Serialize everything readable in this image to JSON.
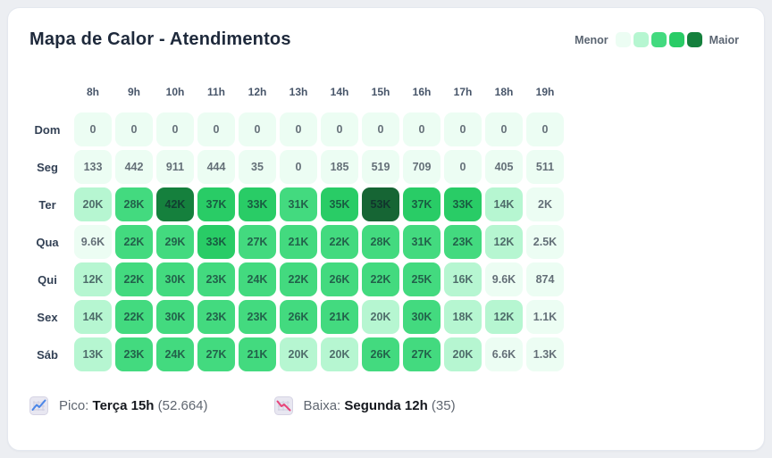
{
  "card": {
    "title": "Mapa de Calor - Atendimentos"
  },
  "legend": {
    "min_label": "Menor",
    "max_label": "Maior",
    "colors": [
      "#ecfdf3",
      "#b6f6d1",
      "#43da7f",
      "#29cc66",
      "#15803d"
    ]
  },
  "heatmap": {
    "cell_text_color": "rgba(15,23,42,0.62)",
    "levels": [
      {
        "bg": "#ecfdf3"
      },
      {
        "bg": "#b6f6d1"
      },
      {
        "bg": "#43da7f"
      },
      {
        "bg": "#29cc66"
      },
      {
        "bg": "#15803d"
      },
      {
        "bg": "#166534"
      }
    ],
    "hours": [
      "8h",
      "9h",
      "10h",
      "11h",
      "12h",
      "13h",
      "14h",
      "15h",
      "16h",
      "17h",
      "18h",
      "19h"
    ],
    "rows": [
      {
        "day": "Dom",
        "cells": [
          {
            "v": "0",
            "l": 0
          },
          {
            "v": "0",
            "l": 0
          },
          {
            "v": "0",
            "l": 0
          },
          {
            "v": "0",
            "l": 0
          },
          {
            "v": "0",
            "l": 0
          },
          {
            "v": "0",
            "l": 0
          },
          {
            "v": "0",
            "l": 0
          },
          {
            "v": "0",
            "l": 0
          },
          {
            "v": "0",
            "l": 0
          },
          {
            "v": "0",
            "l": 0
          },
          {
            "v": "0",
            "l": 0
          },
          {
            "v": "0",
            "l": 0
          }
        ]
      },
      {
        "day": "Seg",
        "cells": [
          {
            "v": "133",
            "l": 0
          },
          {
            "v": "442",
            "l": 0
          },
          {
            "v": "911",
            "l": 0
          },
          {
            "v": "444",
            "l": 0
          },
          {
            "v": "35",
            "l": 0
          },
          {
            "v": "0",
            "l": 0
          },
          {
            "v": "185",
            "l": 0
          },
          {
            "v": "519",
            "l": 0
          },
          {
            "v": "709",
            "l": 0
          },
          {
            "v": "0",
            "l": 0
          },
          {
            "v": "405",
            "l": 0
          },
          {
            "v": "511",
            "l": 0
          }
        ]
      },
      {
        "day": "Ter",
        "cells": [
          {
            "v": "20K",
            "l": 1
          },
          {
            "v": "28K",
            "l": 2
          },
          {
            "v": "42K",
            "l": 4
          },
          {
            "v": "37K",
            "l": 3
          },
          {
            "v": "33K",
            "l": 3
          },
          {
            "v": "31K",
            "l": 2
          },
          {
            "v": "35K",
            "l": 3
          },
          {
            "v": "53K",
            "l": 5
          },
          {
            "v": "37K",
            "l": 3
          },
          {
            "v": "33K",
            "l": 3
          },
          {
            "v": "14K",
            "l": 1
          },
          {
            "v": "2K",
            "l": 0
          }
        ]
      },
      {
        "day": "Qua",
        "cells": [
          {
            "v": "9.6K",
            "l": 0
          },
          {
            "v": "22K",
            "l": 2
          },
          {
            "v": "29K",
            "l": 2
          },
          {
            "v": "33K",
            "l": 3
          },
          {
            "v": "27K",
            "l": 2
          },
          {
            "v": "21K",
            "l": 2
          },
          {
            "v": "22K",
            "l": 2
          },
          {
            "v": "28K",
            "l": 2
          },
          {
            "v": "31K",
            "l": 2
          },
          {
            "v": "23K",
            "l": 2
          },
          {
            "v": "12K",
            "l": 1
          },
          {
            "v": "2.5K",
            "l": 0
          }
        ]
      },
      {
        "day": "Qui",
        "cells": [
          {
            "v": "12K",
            "l": 1
          },
          {
            "v": "22K",
            "l": 2
          },
          {
            "v": "30K",
            "l": 2
          },
          {
            "v": "23K",
            "l": 2
          },
          {
            "v": "24K",
            "l": 2
          },
          {
            "v": "22K",
            "l": 2
          },
          {
            "v": "26K",
            "l": 2
          },
          {
            "v": "22K",
            "l": 2
          },
          {
            "v": "25K",
            "l": 2
          },
          {
            "v": "16K",
            "l": 1
          },
          {
            "v": "9.6K",
            "l": 0
          },
          {
            "v": "874",
            "l": 0
          }
        ]
      },
      {
        "day": "Sex",
        "cells": [
          {
            "v": "14K",
            "l": 1
          },
          {
            "v": "22K",
            "l": 2
          },
          {
            "v": "30K",
            "l": 2
          },
          {
            "v": "23K",
            "l": 2
          },
          {
            "v": "23K",
            "l": 2
          },
          {
            "v": "26K",
            "l": 2
          },
          {
            "v": "21K",
            "l": 2
          },
          {
            "v": "20K",
            "l": 1
          },
          {
            "v": "30K",
            "l": 2
          },
          {
            "v": "18K",
            "l": 1
          },
          {
            "v": "12K",
            "l": 1
          },
          {
            "v": "1.1K",
            "l": 0
          }
        ]
      },
      {
        "day": "Sáb",
        "cells": [
          {
            "v": "13K",
            "l": 1
          },
          {
            "v": "23K",
            "l": 2
          },
          {
            "v": "24K",
            "l": 2
          },
          {
            "v": "27K",
            "l": 2
          },
          {
            "v": "21K",
            "l": 2
          },
          {
            "v": "20K",
            "l": 1
          },
          {
            "v": "20K",
            "l": 1
          },
          {
            "v": "26K",
            "l": 2
          },
          {
            "v": "27K",
            "l": 2
          },
          {
            "v": "20K",
            "l": 1
          },
          {
            "v": "6.6K",
            "l": 0
          },
          {
            "v": "1.3K",
            "l": 0
          }
        ]
      }
    ]
  },
  "footer": {
    "peak": {
      "label": "Pico:",
      "value": "Terça 15h",
      "detail": "(52.664)"
    },
    "low": {
      "label": "Baixa:",
      "value": "Segunda 12h",
      "detail": "(35)"
    }
  },
  "chart_data": {
    "type": "heatmap",
    "title": "Mapa de Calor - Atendimentos",
    "x": [
      "8h",
      "9h",
      "10h",
      "11h",
      "12h",
      "13h",
      "14h",
      "15h",
      "16h",
      "17h",
      "18h",
      "19h"
    ],
    "y": [
      "Dom",
      "Seg",
      "Ter",
      "Qua",
      "Qui",
      "Sex",
      "Sáb"
    ],
    "values": [
      [
        0,
        0,
        0,
        0,
        0,
        0,
        0,
        0,
        0,
        0,
        0,
        0
      ],
      [
        133,
        442,
        911,
        444,
        35,
        0,
        185,
        519,
        709,
        0,
        405,
        511
      ],
      [
        20000,
        28000,
        42000,
        37000,
        33000,
        31000,
        35000,
        52664,
        37000,
        33000,
        14000,
        2000
      ],
      [
        9600,
        22000,
        29000,
        33000,
        27000,
        21000,
        22000,
        28000,
        31000,
        23000,
        12000,
        2500
      ],
      [
        12000,
        22000,
        30000,
        23000,
        24000,
        22000,
        26000,
        22000,
        25000,
        16000,
        9600,
        874
      ],
      [
        14000,
        22000,
        30000,
        23000,
        23000,
        26000,
        21000,
        20000,
        30000,
        18000,
        12000,
        1100
      ],
      [
        13000,
        23000,
        24000,
        27000,
        21000,
        20000,
        20000,
        26000,
        27000,
        20000,
        6600,
        1300
      ]
    ],
    "value_labels": [
      [
        "0",
        "0",
        "0",
        "0",
        "0",
        "0",
        "0",
        "0",
        "0",
        "0",
        "0",
        "0"
      ],
      [
        "133",
        "442",
        "911",
        "444",
        "35",
        "0",
        "185",
        "519",
        "709",
        "0",
        "405",
        "511"
      ],
      [
        "20K",
        "28K",
        "42K",
        "37K",
        "33K",
        "31K",
        "35K",
        "53K",
        "37K",
        "33K",
        "14K",
        "2K"
      ],
      [
        "9.6K",
        "22K",
        "29K",
        "33K",
        "27K",
        "21K",
        "22K",
        "28K",
        "31K",
        "23K",
        "12K",
        "2.5K"
      ],
      [
        "12K",
        "22K",
        "30K",
        "23K",
        "24K",
        "22K",
        "26K",
        "22K",
        "25K",
        "16K",
        "9.6K",
        "874"
      ],
      [
        "14K",
        "22K",
        "30K",
        "23K",
        "23K",
        "26K",
        "21K",
        "20K",
        "30K",
        "18K",
        "12K",
        "1.1K"
      ],
      [
        "13K",
        "23K",
        "24K",
        "27K",
        "21K",
        "20K",
        "20K",
        "26K",
        "27K",
        "20K",
        "6.6K",
        "1.3K"
      ]
    ],
    "color_scale": [
      "#ecfdf3",
      "#b6f6d1",
      "#43da7f",
      "#29cc66",
      "#15803d",
      "#166534"
    ],
    "legend": {
      "position": "top-right",
      "min_label": "Menor",
      "max_label": "Maior"
    },
    "annotations": [
      {
        "name": "peak",
        "text": "Pico: Terça 15h (52.664)"
      },
      {
        "name": "low",
        "text": "Baixa: Segunda 12h (35)"
      }
    ]
  }
}
